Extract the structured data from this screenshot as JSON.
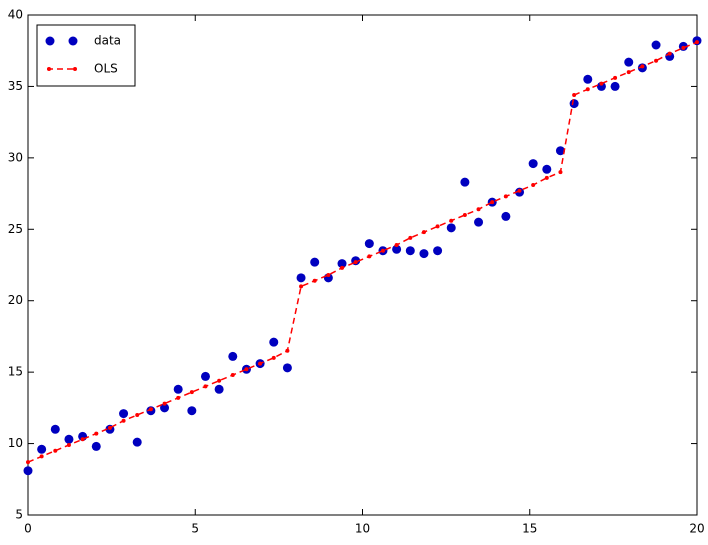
{
  "chart_data": {
    "type": "scatter",
    "x": [
      0,
      0.408,
      0.816,
      1.224,
      1.633,
      2.041,
      2.449,
      2.857,
      3.265,
      3.673,
      4.082,
      4.49,
      4.898,
      5.306,
      5.714,
      6.122,
      6.531,
      6.939,
      7.347,
      7.755,
      8.163,
      8.571,
      8.98,
      9.388,
      9.796,
      10.204,
      10.612,
      11.02,
      11.429,
      11.837,
      12.245,
      12.653,
      13.061,
      13.469,
      13.878,
      14.286,
      14.694,
      15.102,
      15.51,
      15.918,
      16.327,
      16.735,
      17.143,
      17.551,
      17.959,
      18.367,
      18.776,
      19.184,
      19.592,
      20
    ],
    "series": [
      {
        "name": "data",
        "color": "#0000bf",
        "mode": "markers",
        "values": [
          8.1,
          9.6,
          11.0,
          10.3,
          10.5,
          9.8,
          11.0,
          12.1,
          10.1,
          12.3,
          12.5,
          13.8,
          12.3,
          14.7,
          13.8,
          16.1,
          15.2,
          15.6,
          17.1,
          15.3,
          21.6,
          22.7,
          21.6,
          22.6,
          22.8,
          24.0,
          23.5,
          23.6,
          23.5,
          23.3,
          23.5,
          25.1,
          28.3,
          25.5,
          26.9,
          25.9,
          27.6,
          29.6,
          29.2,
          30.5,
          33.8,
          35.5,
          35.0,
          35.0,
          36.7,
          36.3,
          37.9,
          37.1,
          37.8,
          38.2
        ]
      },
      {
        "name": "OLS",
        "color": "#ff0000",
        "mode": "dashed-line",
        "values": [
          8.7,
          9.1,
          9.5,
          9.9,
          10.3,
          10.7,
          11.1,
          11.6,
          12.0,
          12.4,
          12.8,
          13.2,
          13.6,
          14.0,
          14.4,
          14.8,
          15.2,
          15.6,
          16.0,
          16.5,
          21.0,
          21.4,
          21.8,
          22.3,
          22.7,
          23.1,
          23.5,
          23.9,
          24.4,
          24.8,
          25.2,
          25.6,
          26.0,
          26.4,
          26.9,
          27.3,
          27.7,
          28.1,
          28.6,
          29.0,
          34.4,
          34.8,
          35.2,
          35.6,
          36.0,
          36.4,
          36.8,
          37.3,
          37.7,
          38.1
        ]
      }
    ],
    "xlim": [
      0,
      20
    ],
    "xticks": [
      0,
      5,
      10,
      15,
      20
    ],
    "ylim": [
      5,
      40
    ],
    "yticks": [
      5,
      10,
      15,
      20,
      25,
      30,
      35,
      40
    ],
    "legend": "upper left"
  }
}
